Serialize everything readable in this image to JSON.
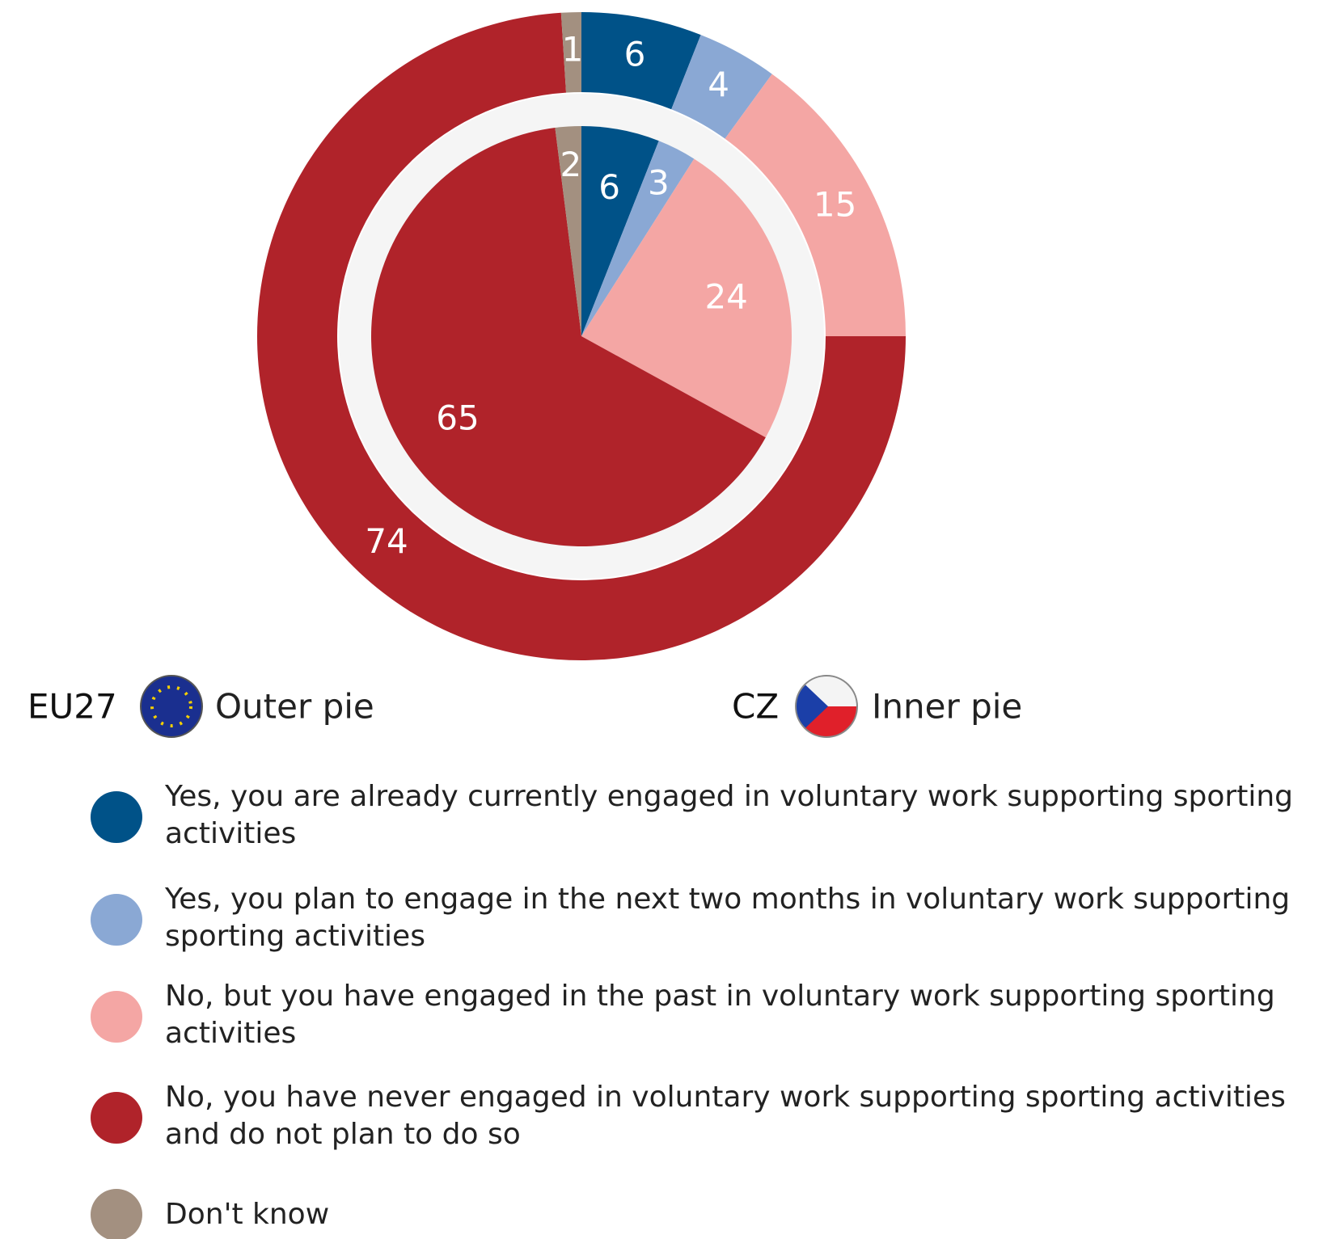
{
  "chart_data": {
    "type": "nested-pie",
    "categories": [
      "Yes, you are already currently engaged in voluntary work supporting sporting activities",
      "Yes, you plan to engage in the next two months in voluntary work supporting sporting activities",
      "No, but you have engaged in the past in voluntary work supporting sporting activities",
      "No, you have never engaged in voluntary work supporting sporting activities and do not plan to do so",
      "Don't know"
    ],
    "colors": [
      "#005288",
      "#8aa8d4",
      "#f4a6a4",
      "#b0232a",
      "#a39080"
    ],
    "series": [
      {
        "name": "EU27",
        "label": "Outer pie",
        "values": [
          6,
          4,
          15,
          74,
          1
        ]
      },
      {
        "name": "CZ",
        "label": "Inner pie",
        "values": [
          6,
          3,
          24,
          65,
          2
        ]
      }
    ]
  }
}
